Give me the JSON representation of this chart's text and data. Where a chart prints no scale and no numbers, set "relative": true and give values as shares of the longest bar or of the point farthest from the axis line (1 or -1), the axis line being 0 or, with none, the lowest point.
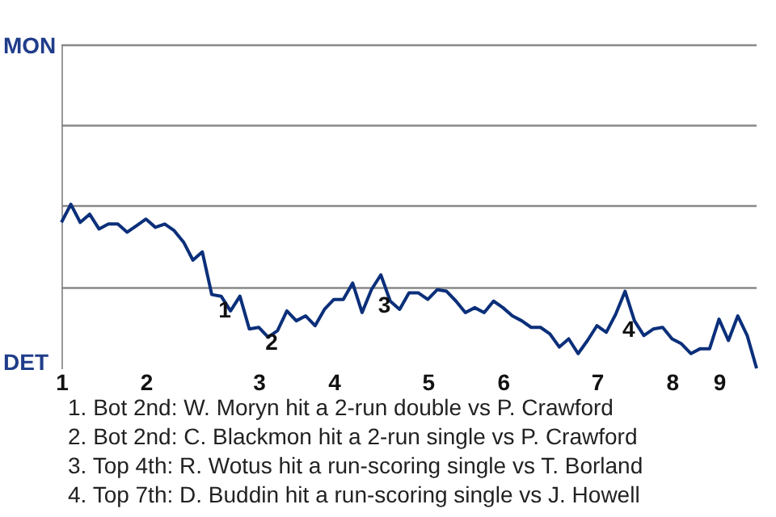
{
  "chart_data": {
    "type": "line",
    "categories": [
      "1",
      null,
      null,
      null,
      null,
      null,
      null,
      null,
      null,
      "2",
      null,
      null,
      null,
      null,
      null,
      null,
      null,
      null,
      null,
      null,
      null,
      "3",
      null,
      null,
      null,
      null,
      null,
      null,
      null,
      "4",
      null,
      null,
      null,
      null,
      null,
      null,
      null,
      null,
      null,
      "5",
      null,
      null,
      null,
      null,
      null,
      null,
      null,
      "6",
      null,
      null,
      null,
      null,
      null,
      null,
      null,
      null,
      null,
      "7",
      null,
      null,
      null,
      null,
      null,
      null,
      null,
      "8",
      null,
      null,
      null,
      null,
      "9",
      null,
      null,
      null,
      null
    ],
    "series": [
      {
        "color": "#0b2f7a",
        "values": [
          0.89,
          1,
          0.89,
          0.94,
          0.85,
          0.88,
          0.88,
          0.83,
          0.87,
          0.91,
          0.86,
          0.88,
          0.84,
          0.77,
          0.66,
          0.71,
          0.45,
          0.44,
          0.35,
          0.44,
          0.24,
          0.25,
          0.19,
          0.23,
          0.35,
          0.29,
          0.32,
          0.26,
          0.36,
          0.42,
          0.42,
          0.52,
          0.34,
          0.48,
          0.57,
          0.41,
          0.36,
          0.46,
          0.46,
          0.42,
          0.48,
          0.47,
          0.41,
          0.34,
          0.37,
          0.34,
          0.41,
          0.37,
          0.32,
          0.29,
          0.25,
          0.25,
          0.21,
          0.13,
          0.18,
          0.09,
          0.17,
          0.26,
          0.22,
          0.33,
          0.47,
          0.29,
          0.2,
          0.24,
          0.25,
          0.18,
          0.15,
          0.09,
          0.12,
          0.12,
          0.3,
          0.17,
          0.32,
          0.2,
          0
        ]
      }
    ],
    "relative": true,
    "ref_lines": [
      {
        "axis": "y",
        "value": 0.49,
        "color": "#888888"
      },
      {
        "axis": "y",
        "value": 0.99,
        "color": "#888888"
      },
      {
        "axis": "y",
        "value": 1.48,
        "color": "#888888"
      },
      {
        "axis": "y",
        "value": 1.97,
        "color": "#888888"
      }
    ],
    "annotations": [
      "MON",
      "DET",
      {
        "text": "1",
        "y": 0.45
      },
      {
        "text": "2",
        "y": 0.25
      },
      {
        "text": "3",
        "y": 0.48
      },
      {
        "text": "4",
        "y": 0.33
      },
      "1. Bot 2nd: W. Moryn hit a 2-run double vs P. Crawford",
      "2. Bot 2nd: C. Blackmon hit a 2-run single vs P. Crawford",
      "3. Top 4th: R. Wotus hit a run-scoring single vs T. Borland",
      "4. Top 7th: D. Buddin hit a run-scoring single vs J. Howell"
    ]
  }
}
